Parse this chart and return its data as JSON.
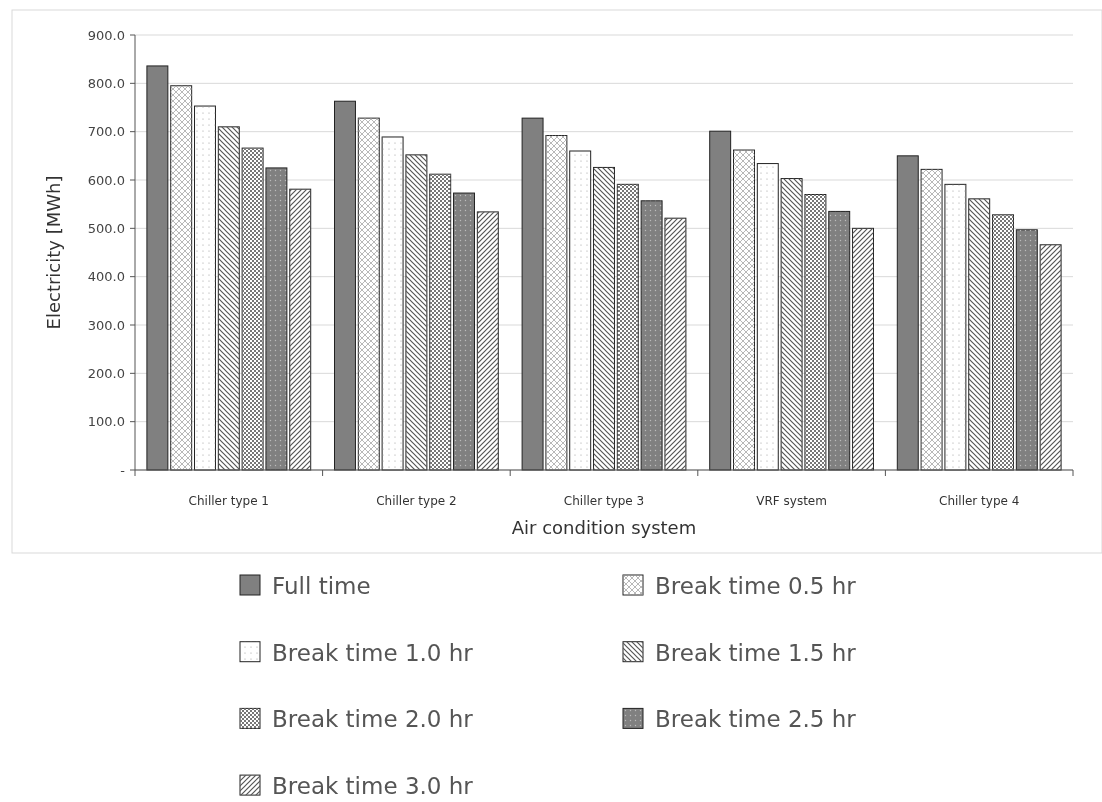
{
  "chart_data": {
    "type": "bar",
    "xlabel": "Air condition system",
    "ylabel": "Electricity [MWh]",
    "categories": [
      "Chiller type 1",
      "Chiller type 2",
      "Chiller type 3",
      "VRF system",
      "Chiller type 4"
    ],
    "series": [
      {
        "name": "Full time",
        "color": "#808080",
        "values": [
          836,
          763,
          728,
          701,
          650
        ]
      },
      {
        "name": "Break time 0.5 hr",
        "color": "#ffffff",
        "values": [
          795,
          728,
          692,
          662,
          622
        ]
      },
      {
        "name": "Break time 1.0 hr",
        "color": "#ffffff",
        "values": [
          753,
          689,
          660,
          634,
          591
        ]
      },
      {
        "name": "Break time 1.5 hr",
        "color": "#ffffff",
        "values": [
          710,
          652,
          626,
          603,
          561
        ]
      },
      {
        "name": "Break time 2.0 hr",
        "color": "#ffffff",
        "values": [
          666,
          612,
          591,
          570,
          528
        ]
      },
      {
        "name": "Break time 2.5 hr",
        "color": "#808080",
        "values": [
          625,
          573,
          557,
          535,
          497
        ]
      },
      {
        "name": "Break time 3.0 hr",
        "color": "#ffffff",
        "values": [
          581,
          534,
          521,
          500,
          466
        ]
      }
    ],
    "ylim": [
      0,
      900
    ],
    "yticks": [
      {
        "value": 0,
        "label": "-"
      },
      {
        "value": 100,
        "label": "100.0"
      },
      {
        "value": 200,
        "label": "200.0"
      },
      {
        "value": 300,
        "label": "300.0"
      },
      {
        "value": 400,
        "label": "400.0"
      },
      {
        "value": 500,
        "label": "500.0"
      },
      {
        "value": 600,
        "label": "600.0"
      },
      {
        "value": 700,
        "label": "700.0"
      },
      {
        "value": 800,
        "label": "800.0"
      },
      {
        "value": 900,
        "label": "900.0"
      }
    ],
    "grid": "y",
    "legend": "bottom"
  }
}
